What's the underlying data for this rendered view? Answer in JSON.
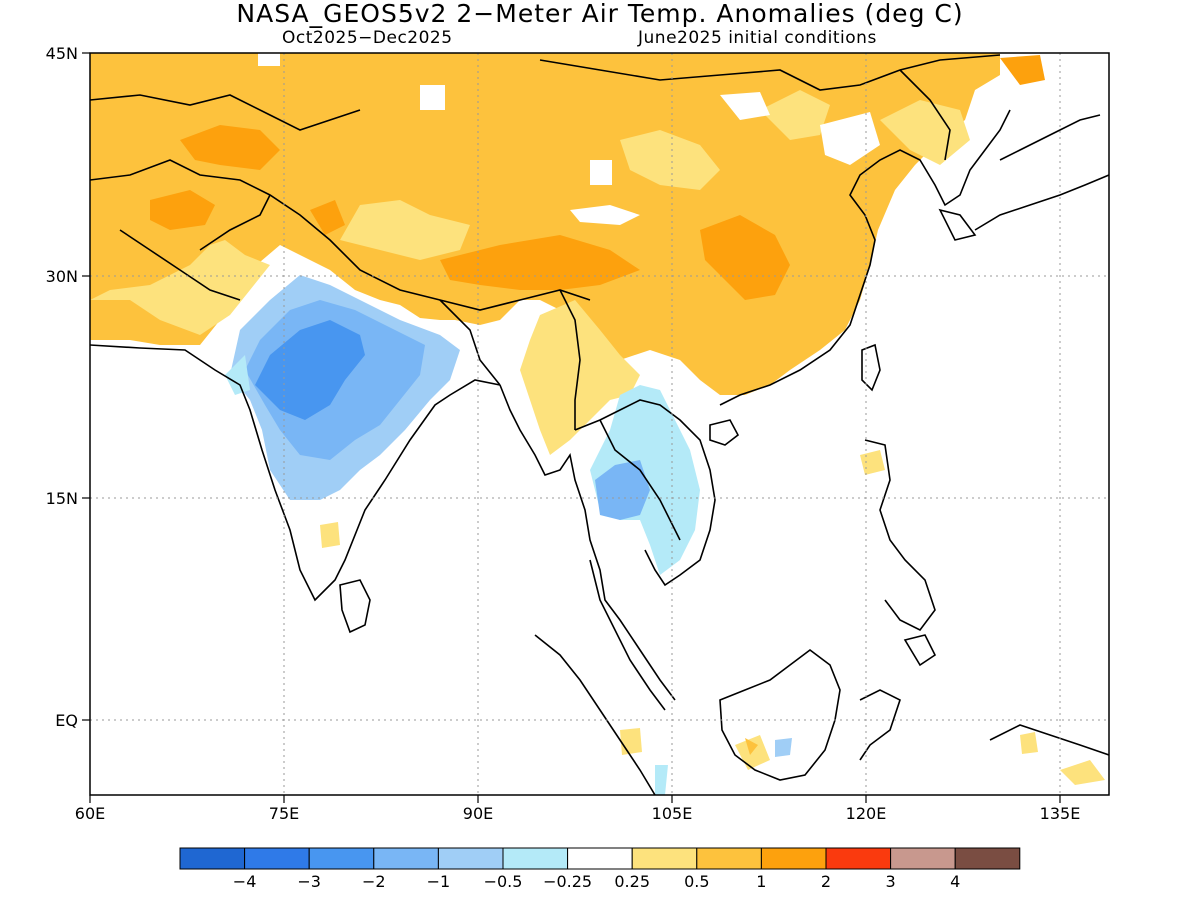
{
  "title": "NASA_GEOS5v2 2−Meter Air Temp. Anomalies (deg C)",
  "subtitle_left": "Oct2025−Dec2025",
  "subtitle_right": "June2025 initial conditions",
  "map": {
    "lon_labels": [
      "60E",
      "75E",
      "90E",
      "105E",
      "120E",
      "135E"
    ],
    "lat_labels": [
      "45N",
      "30N",
      "15N",
      "EQ"
    ],
    "gridlines": "dotted"
  },
  "colorbar": {
    "colors": [
      "#1f67d2",
      "#2f7ae8",
      "#4896f0",
      "#79b6f5",
      "#a0cef6",
      "#b4eaf8",
      "#ffffff",
      "#fde27d",
      "#fdc23d",
      "#fda10d",
      "#fa3a0e",
      "#c8988e",
      "#7a4d42"
    ],
    "labels": [
      "−4",
      "−3",
      "−2",
      "−1",
      "−0.5",
      "−0.25",
      "0.25",
      "0.5",
      "1",
      "2",
      "3",
      "4"
    ]
  }
}
